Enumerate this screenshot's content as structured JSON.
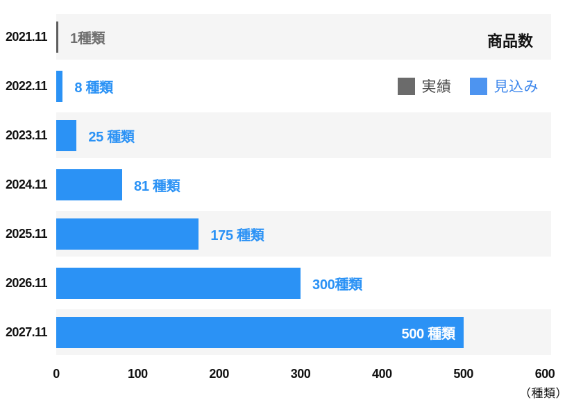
{
  "title": "商品数",
  "legend": {
    "items": [
      {
        "label": "実績",
        "swatch_color": "#6b6b6b",
        "text_color": "#4a4a4a"
      },
      {
        "label": "見込み",
        "swatch_color": "#4d94f0",
        "text_color": "#4189ec"
      }
    ]
  },
  "axis": {
    "max": 600,
    "tick_values": [
      0,
      100,
      200,
      300,
      400,
      500,
      600
    ],
    "ticks": [
      "0",
      "100",
      "200",
      "300",
      "400",
      "500",
      "600"
    ],
    "unit_label": "（種類）"
  },
  "colors": {
    "actual_bar": "#5e5e5e",
    "forecast_bar": "#2b92f5",
    "value_label_actual": "#6e6e6e",
    "value_label_forecast": "#2b92f5",
    "value_label_inside": "#ffffff",
    "row_band": "#f5f5f5",
    "text": "#111111"
  },
  "chart_data": {
    "type": "bar",
    "orientation": "horizontal",
    "title": "商品数",
    "categories": [
      "2021.11",
      "2022.11",
      "2023.11",
      "2024.11",
      "2025.11",
      "2026.11",
      "2027.11"
    ],
    "values": [
      1,
      8,
      25,
      81,
      175,
      300,
      500
    ],
    "series": [
      {
        "name": "実績",
        "color": "#5e5e5e",
        "values": [
          1,
          null,
          null,
          null,
          null,
          null,
          null
        ]
      },
      {
        "name": "見込み",
        "color": "#2b92f5",
        "values": [
          null,
          8,
          25,
          81,
          175,
          300,
          500
        ]
      }
    ],
    "xlim": [
      0,
      600
    ],
    "x_ticks": [
      0,
      100,
      200,
      300,
      400,
      500,
      600
    ],
    "x_unit": "（種類）",
    "legend": [
      "実績",
      "見込み"
    ],
    "legend_position": "top-right",
    "grid": false,
    "rows": [
      {
        "category": "2021.11",
        "value": 1,
        "label": "1種類",
        "series": "実績",
        "band": true,
        "label_inside": false
      },
      {
        "category": "2022.11",
        "value": 8,
        "label": "8 種類",
        "series": "見込み",
        "band": false,
        "label_inside": false
      },
      {
        "category": "2023.11",
        "value": 25,
        "label": "25 種類",
        "series": "見込み",
        "band": true,
        "label_inside": false
      },
      {
        "category": "2024.11",
        "value": 81,
        "label": "81 種類",
        "series": "見込み",
        "band": false,
        "label_inside": false
      },
      {
        "category": "2025.11",
        "value": 175,
        "label": "175 種類",
        "series": "見込み",
        "band": true,
        "label_inside": false
      },
      {
        "category": "2026.11",
        "value": 300,
        "label": "300種類",
        "series": "見込み",
        "band": false,
        "label_inside": false
      },
      {
        "category": "2027.11",
        "value": 500,
        "label": "500 種類",
        "series": "見込み",
        "band": true,
        "label_inside": true
      }
    ]
  }
}
